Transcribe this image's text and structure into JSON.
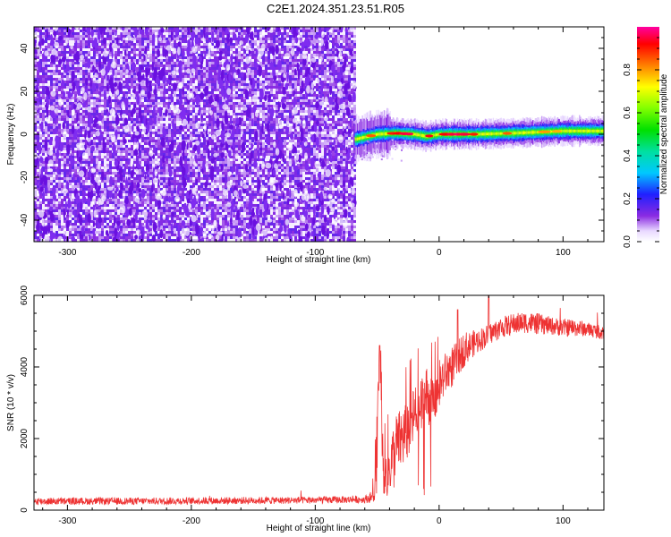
{
  "title": "C2E1.2024.351.23.51.R05",
  "chart_data": [
    {
      "type": "heatmap",
      "title": "C2E1.2024.351.23.51.R05",
      "xlabel": "Height of straight line (km)",
      "ylabel": "Frequency (Hz)",
      "xlim": [
        -327,
        133
      ],
      "ylim": [
        -50,
        50
      ],
      "x_ticks": [
        -300,
        -200,
        -100,
        0,
        100
      ],
      "y_ticks": [
        -40,
        -20,
        0,
        20,
        40
      ],
      "colorbar": {
        "label": "Normalized spectral amplitude",
        "range": [
          0,
          1
        ],
        "ticks": [
          "0.0",
          "0.2",
          "0.4",
          "0.6",
          "0.8"
        ],
        "colormap": "rainbow (white-purple-blue-cyan-green-yellow-red-magenta)"
      },
      "regions": [
        {
          "x_range": [
            -327,
            -68
          ],
          "description_value": "noise",
          "amplitude_range": [
            0.0,
            0.12
          ],
          "freq_range": [
            -50,
            50
          ]
        },
        {
          "x_range": [
            -68,
            133
          ],
          "description_value": "carrier",
          "amplitude_range": [
            0.2,
            1.0
          ],
          "freq_center": 0,
          "freq_halfwidth": 3
        }
      ],
      "carrier_center_freq": [
        {
          "x": -65,
          "f": -2
        },
        {
          "x": -50,
          "f": 0
        },
        {
          "x": -35,
          "f": 0.5
        },
        {
          "x": -20,
          "f": 0
        },
        {
          "x": -10,
          "f": -1
        },
        {
          "x": 0,
          "f": 0
        },
        {
          "x": 30,
          "f": 0
        },
        {
          "x": 60,
          "f": 0.5
        },
        {
          "x": 100,
          "f": 1.5
        },
        {
          "x": 133,
          "f": 1.5
        }
      ],
      "colors": {
        "noise": "#7b22e6",
        "peak": "#ff2a2a"
      }
    },
    {
      "type": "line",
      "xlabel": "Height of straight line (km)",
      "ylabel": "SNR (10 * v/v)",
      "xlim": [
        -327,
        133
      ],
      "ylim": [
        0,
        6000
      ],
      "x_ticks": [
        -300,
        -200,
        -100,
        0,
        100
      ],
      "y_ticks": [
        0,
        2000,
        4000,
        6000
      ],
      "series": [
        {
          "color": "#ee3333",
          "x": [
            -327,
            -300,
            -250,
            -200,
            -150,
            -100,
            -60,
            -52,
            -50,
            -47,
            -45,
            -40,
            -35,
            -30,
            -25,
            -20,
            -15,
            -10,
            -5,
            0,
            5,
            10,
            15,
            20,
            25,
            30,
            40,
            50,
            60,
            70,
            80,
            90,
            100,
            110,
            120,
            133
          ],
          "y": [
            250,
            250,
            250,
            260,
            270,
            280,
            300,
            400,
            2500,
            3500,
            900,
            1200,
            1800,
            2000,
            2300,
            2600,
            2800,
            3200,
            3000,
            3500,
            3800,
            4000,
            4200,
            4500,
            4600,
            4700,
            4900,
            5100,
            5200,
            5250,
            5200,
            5150,
            5100,
            5100,
            5050,
            4950
          ],
          "noise": [
            100,
            100,
            100,
            100,
            100,
            100,
            100,
            200,
            1500,
            1500,
            700,
            800,
            900,
            900,
            900,
            900,
            900,
            900,
            800,
            700,
            600,
            600,
            500,
            500,
            400,
            350,
            300,
            300,
            300,
            300,
            300,
            250,
            250,
            250,
            200,
            200
          ]
        }
      ]
    }
  ]
}
